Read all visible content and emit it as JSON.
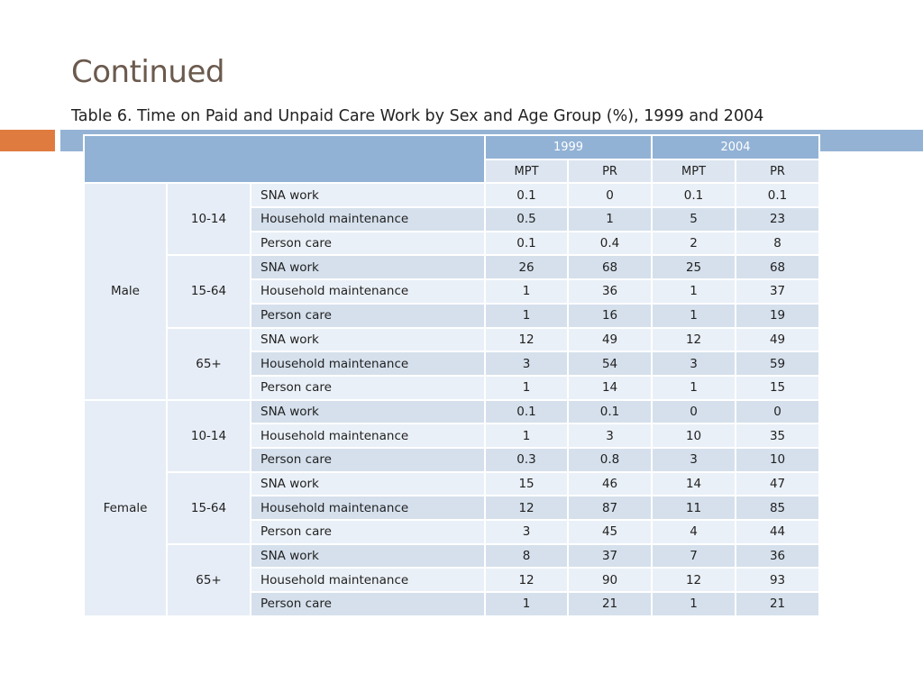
{
  "slide": {
    "title": "Continued",
    "subtitle": "Table 6. Time on Paid and Unpaid Care Work by Sex and Age Group (%), 1999 and 2004"
  },
  "accent_colors": {
    "orange": "#e07b3f",
    "blue": "#94b3d4"
  },
  "table": {
    "years": [
      "1999",
      "2004"
    ],
    "subheaders": [
      "MPT",
      "PR",
      "MPT",
      "PR"
    ],
    "rows": [
      {
        "sex": "Male",
        "age": "10-14",
        "item": "SNA work",
        "v": [
          "0.1",
          "0",
          "0.1",
          "0.1"
        ]
      },
      {
        "sex": "Male",
        "age": "10-14",
        "item": "Household maintenance",
        "v": [
          "0.5",
          "1",
          "5",
          "23"
        ]
      },
      {
        "sex": "Male",
        "age": "10-14",
        "item": "Person care",
        "v": [
          "0.1",
          "0.4",
          "2",
          "8"
        ]
      },
      {
        "sex": "Male",
        "age": "15-64",
        "item": "SNA work",
        "v": [
          "26",
          "68",
          "25",
          "68"
        ]
      },
      {
        "sex": "Male",
        "age": "15-64",
        "item": "Household maintenance",
        "v": [
          "1",
          "36",
          "1",
          "37"
        ]
      },
      {
        "sex": "Male",
        "age": "15-64",
        "item": "Person care",
        "v": [
          "1",
          "16",
          "1",
          "19"
        ]
      },
      {
        "sex": "Male",
        "age": "65+",
        "item": "SNA work",
        "v": [
          "12",
          "49",
          "12",
          "49"
        ]
      },
      {
        "sex": "Male",
        "age": "65+",
        "item": "Household maintenance",
        "v": [
          "3",
          "54",
          "3",
          "59"
        ]
      },
      {
        "sex": "Male",
        "age": "65+",
        "item": "Person care",
        "v": [
          "1",
          "14",
          "1",
          "15"
        ]
      },
      {
        "sex": "Female",
        "age": "10-14",
        "item": "SNA work",
        "v": [
          "0.1",
          "0.1",
          "0",
          "0"
        ]
      },
      {
        "sex": "Female",
        "age": "10-14",
        "item": "Household maintenance",
        "v": [
          "1",
          "3",
          "10",
          "35"
        ]
      },
      {
        "sex": "Female",
        "age": "10-14",
        "item": "Person care",
        "v": [
          "0.3",
          "0.8",
          "3",
          "10"
        ]
      },
      {
        "sex": "Female",
        "age": "15-64",
        "item": "SNA work",
        "v": [
          "15",
          "46",
          "14",
          "47"
        ]
      },
      {
        "sex": "Female",
        "age": "15-64",
        "item": "Household maintenance",
        "v": [
          "12",
          "87",
          "11",
          "85"
        ]
      },
      {
        "sex": "Female",
        "age": "15-64",
        "item": "Person care",
        "v": [
          "3",
          "45",
          "4",
          "44"
        ]
      },
      {
        "sex": "Female",
        "age": "65+",
        "item": "SNA work",
        "v": [
          "8",
          "37",
          "7",
          "36"
        ]
      },
      {
        "sex": "Female",
        "age": "65+",
        "item": "Household maintenance",
        "v": [
          "12",
          "90",
          "12",
          "93"
        ]
      },
      {
        "sex": "Female",
        "age": "65+",
        "item": "Person care",
        "v": [
          "1",
          "21",
          "1",
          "21"
        ]
      }
    ]
  }
}
